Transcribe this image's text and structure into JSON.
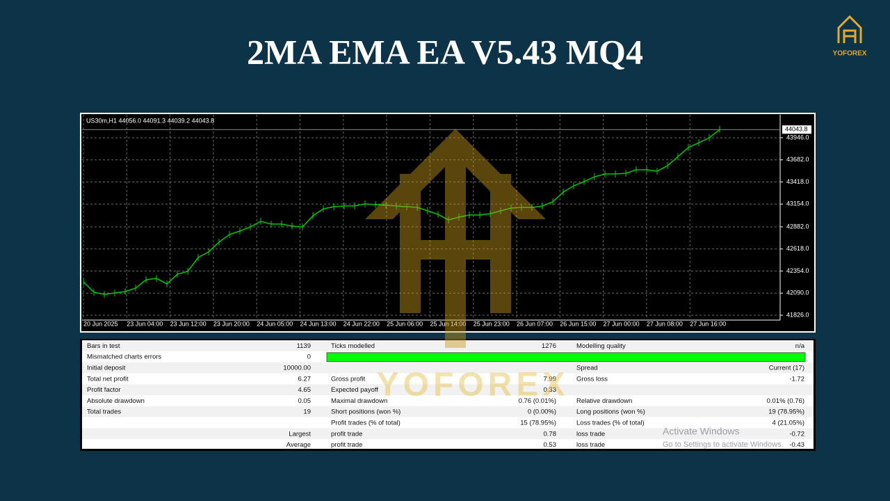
{
  "header": {
    "title": "2MA EMA EA V5.43 MQ4",
    "logo": "YOFOREX"
  },
  "chart": {
    "type": "line",
    "symbol_info": "US30m,H1  44056.0 44091.3 44039.2 44043.8",
    "current_price": 44043.8,
    "color": "#00c800",
    "grid": true,
    "ylim": [
      41768,
      44220
    ],
    "yticks": [
      {
        "value": 41826.0,
        "label": "41826.0"
      },
      {
        "value": 42090.0,
        "label": "42090.0"
      },
      {
        "value": 42354.0,
        "label": "42354.0"
      },
      {
        "value": 42618.0,
        "label": "42618.0"
      },
      {
        "value": 42882.0,
        "label": "42882.0"
      },
      {
        "value": 43154.0,
        "label": "43154.0"
      },
      {
        "value": 43418.0,
        "label": "43418.0"
      },
      {
        "value": 43682.0,
        "label": "43682.0"
      },
      {
        "value": 43946.0,
        "label": "43946.0"
      }
    ],
    "time_labels": [
      "20 Jun 2025",
      "23 Jun 04:00",
      "23 Jun 12:00",
      "23 Jun 20:00",
      "24 Jun 05:00",
      "24 Jun 13:00",
      "24 Jun 22:00",
      "25 Jun 06:00",
      "25 Jun 14:00",
      "25 Jun 23:00",
      "26 Jun 07:00",
      "26 Jun 15:00",
      "27 Jun 00:00",
      "27 Jun 08:00",
      "27 Jun 16:00"
    ],
    "values": [
      42225,
      42100,
      42075,
      42092,
      42109,
      42150,
      42250,
      42266,
      42200,
      42316,
      42350,
      42516,
      42582,
      42699,
      42790,
      42832,
      42881,
      42948,
      42915,
      42915,
      42890,
      42881,
      43014,
      43097,
      43122,
      43131,
      43131,
      43156,
      43147,
      43139,
      43131,
      43122,
      43114,
      43073,
      43031,
      42964,
      42998,
      43023,
      43023,
      43039,
      43073,
      43106,
      43114,
      43114,
      43131,
      43181,
      43297,
      43372,
      43422,
      43480,
      43513,
      43513,
      43521,
      43563,
      43563,
      43546,
      43613,
      43721,
      43829,
      43887,
      43945,
      44045
    ]
  },
  "report": {
    "rows": [
      [
        "Bars in test",
        "1139",
        "Ticks modelled",
        "1276",
        "Modelling quality",
        "n/a"
      ],
      [
        "Mismatched charts errors",
        "0",
        null,
        null,
        null,
        null
      ],
      [
        "Initial deposit",
        "10000.00",
        null,
        null,
        "Spread",
        "Current (17)"
      ],
      [
        "Total net profit",
        "6.27",
        "Gross profit",
        "7.99",
        "Gross loss",
        "-1.72"
      ],
      [
        "Profit factor",
        "4.65",
        "Expected payoff",
        "0.33",
        null,
        null
      ],
      [
        "Absolute drawdown",
        "0.05",
        "Maximal drawdown",
        "0.76 (0.01%)",
        "Relative drawdown",
        "0.01% (0.76)"
      ],
      [
        "Total trades",
        "19",
        "Short positions (won %)",
        "0 (0.00%)",
        "Long positions (won %)",
        "19 (78.95%)"
      ],
      [
        null,
        null,
        "Profit trades (% of total)",
        "15 (78.95%)",
        "Loss trades (% of total)",
        "4 (21.05%)"
      ],
      [
        null,
        "Largest",
        "profit trade",
        "0.78",
        "loss trade",
        "-0.72"
      ],
      [
        null,
        "Average",
        "profit trade",
        "0.53",
        "loss trade",
        "-0.43"
      ]
    ]
  },
  "watermark": {
    "brand": "YOFOREX",
    "activate": "Activate Windows",
    "activate_hint": "Go to Settings to activate Windows."
  }
}
